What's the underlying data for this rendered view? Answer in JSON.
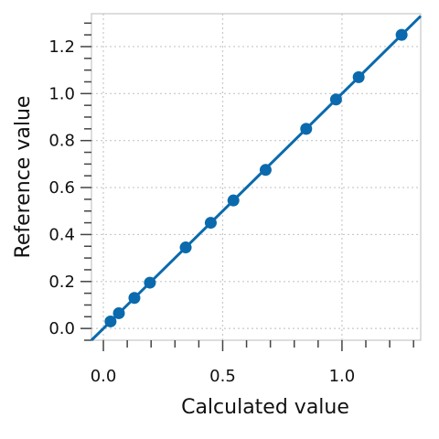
{
  "chart_data": {
    "type": "scatter",
    "xlabel": "Calculated value",
    "ylabel": "Reference value",
    "xlim": [
      -0.05,
      1.33
    ],
    "ylim": [
      -0.05,
      1.34
    ],
    "x_ticks": [
      0.0,
      0.5,
      1.0
    ],
    "x_tick_labels": [
      "0.0",
      "0.5",
      "1.0"
    ],
    "y_ticks": [
      0.0,
      0.2,
      0.4,
      0.6,
      0.8,
      1.0,
      1.2
    ],
    "y_tick_labels": [
      "0.0",
      "0.2",
      "0.4",
      "0.6",
      "0.8",
      "1.0",
      "1.2"
    ],
    "grid": true,
    "series": [
      {
        "x": [
          0.03,
          0.065,
          0.13,
          0.195,
          0.345,
          0.45,
          0.545,
          0.68,
          0.85,
          0.975,
          1.07,
          1.25
        ],
        "y": [
          0.03,
          0.065,
          0.13,
          0.195,
          0.345,
          0.45,
          0.545,
          0.675,
          0.85,
          0.975,
          1.07,
          1.25
        ],
        "color": "#0a6aad"
      }
    ],
    "reference_line": {
      "type": "identity",
      "color": "#0a6aad"
    }
  }
}
